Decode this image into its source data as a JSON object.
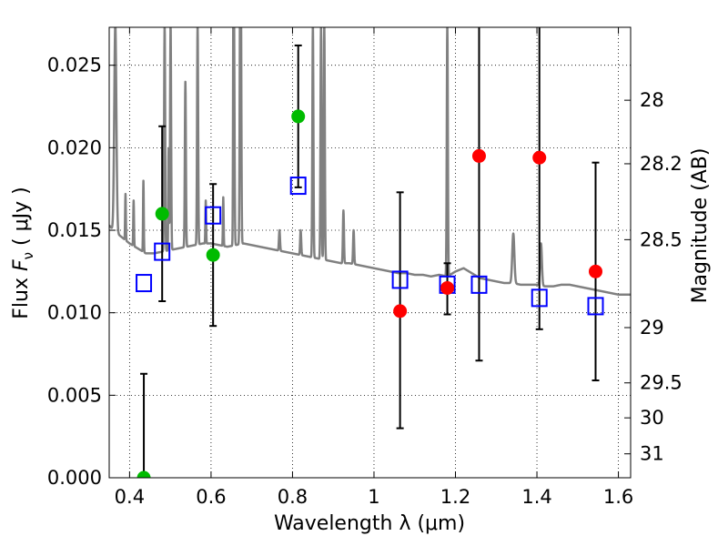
{
  "chart_data": {
    "type": "scatter",
    "title": "",
    "xlabel": "Wavelength  λ (μm)",
    "ylabel": "Flux  F_ν  ( μJy )",
    "ylabel_parts": {
      "flux": "Flux  ",
      "symbol": "F",
      "subscript": "ν",
      "unit": "  ( μJy )"
    },
    "ylabel_right": "Magnitude (AB)",
    "xlim": [
      0.35,
      1.63
    ],
    "ylim": [
      0.0,
      0.0273
    ],
    "grid": true,
    "x_ticks": [
      0.4,
      0.6,
      0.8,
      1.0,
      1.2,
      1.4,
      1.6
    ],
    "x_tick_labels": [
      "0.4",
      "0.6",
      "0.8",
      "1",
      "1.2",
      "1.4",
      "1.6"
    ],
    "y_ticks": [
      0.0,
      0.005,
      0.01,
      0.015,
      0.02,
      0.025
    ],
    "y_tick_labels": [
      "0.000",
      "0.005",
      "0.010",
      "0.015",
      "0.020",
      "0.025"
    ],
    "right_ticks": [
      {
        "label": "28",
        "flux": 0.02288
      },
      {
        "label": "28.2",
        "flux": 0.01903
      },
      {
        "label": "28.5",
        "flux": 0.01443
      },
      {
        "label": "29",
        "flux": 0.0091
      },
      {
        "label": "29.5",
        "flux": 0.00575
      },
      {
        "label": "30",
        "flux": 0.00363
      },
      {
        "label": "31",
        "flux": 0.00145
      }
    ],
    "series": [
      {
        "name": "observed_green",
        "marker": "circle",
        "color": "#00bb00",
        "points": [
          {
            "x": 0.435,
            "y": 0.0,
            "yerr_low": 0.0,
            "yerr_high": 0.0063
          },
          {
            "x": 0.48,
            "y": 0.016,
            "yerr_low": 0.0107,
            "yerr_high": 0.0213
          },
          {
            "x": 0.605,
            "y": 0.0135,
            "yerr_low": 0.0092,
            "yerr_high": 0.0178
          },
          {
            "x": 0.814,
            "y": 0.0219,
            "yerr_low": 0.0176,
            "yerr_high": 0.0262
          }
        ]
      },
      {
        "name": "observed_red",
        "marker": "circle",
        "color": "#ff0000",
        "points": [
          {
            "x": 1.064,
            "y": 0.0101,
            "yerr_low": 0.003,
            "yerr_high": 0.0173
          },
          {
            "x": 1.18,
            "y": 0.0115,
            "yerr_low": 0.0099,
            "yerr_high": 0.013
          },
          {
            "x": 1.258,
            "y": 0.0195,
            "yerr_low": 0.0071,
            "yerr_high": 0.028
          },
          {
            "x": 1.406,
            "y": 0.0194,
            "yerr_low": 0.009,
            "yerr_high": 0.028
          },
          {
            "x": 1.544,
            "y": 0.0125,
            "yerr_low": 0.0059,
            "yerr_high": 0.0191
          }
        ]
      },
      {
        "name": "model_photometry",
        "marker": "square",
        "color": "#0000ff",
        "points": [
          {
            "x": 0.435,
            "y": 0.0118
          },
          {
            "x": 0.48,
            "y": 0.0137
          },
          {
            "x": 0.605,
            "y": 0.0159
          },
          {
            "x": 0.814,
            "y": 0.0177
          },
          {
            "x": 1.064,
            "y": 0.012
          },
          {
            "x": 1.18,
            "y": 0.0117
          },
          {
            "x": 1.258,
            "y": 0.0117
          },
          {
            "x": 1.406,
            "y": 0.0109
          },
          {
            "x": 1.544,
            "y": 0.0104
          }
        ]
      }
    ],
    "model_spectrum": {
      "name": "SED model",
      "color": "#808080",
      "continuum": [
        [
          0.35,
          0.0153
        ],
        [
          0.36,
          0.015
        ],
        [
          0.37,
          0.0148
        ],
        [
          0.38,
          0.0146
        ],
        [
          0.39,
          0.0144
        ],
        [
          0.4,
          0.0142
        ],
        [
          0.42,
          0.0139
        ],
        [
          0.44,
          0.0136
        ],
        [
          0.46,
          0.0136
        ],
        [
          0.48,
          0.0137
        ],
        [
          0.5,
          0.0138
        ],
        [
          0.52,
          0.0139
        ],
        [
          0.54,
          0.014
        ],
        [
          0.56,
          0.0141
        ],
        [
          0.58,
          0.0142
        ],
        [
          0.6,
          0.0142
        ],
        [
          0.62,
          0.0141
        ],
        [
          0.64,
          0.014
        ],
        [
          0.66,
          0.0141
        ],
        [
          0.68,
          0.0142
        ],
        [
          0.7,
          0.0141
        ],
        [
          0.72,
          0.014
        ],
        [
          0.74,
          0.0139
        ],
        [
          0.76,
          0.0138
        ],
        [
          0.78,
          0.0137
        ],
        [
          0.8,
          0.0136
        ],
        [
          0.82,
          0.0135
        ],
        [
          0.84,
          0.0134
        ],
        [
          0.86,
          0.0133
        ],
        [
          0.88,
          0.0132
        ],
        [
          0.9,
          0.0131
        ],
        [
          0.92,
          0.013
        ],
        [
          0.94,
          0.013
        ],
        [
          0.96,
          0.0129
        ],
        [
          0.98,
          0.0128
        ],
        [
          1.0,
          0.0127
        ],
        [
          1.02,
          0.0126
        ],
        [
          1.04,
          0.0125
        ],
        [
          1.06,
          0.0124
        ],
        [
          1.08,
          0.0124
        ],
        [
          1.1,
          0.0123
        ],
        [
          1.12,
          0.0123
        ],
        [
          1.14,
          0.0122
        ],
        [
          1.16,
          0.0123
        ],
        [
          1.18,
          0.0122
        ],
        [
          1.2,
          0.0125
        ],
        [
          1.22,
          0.0127
        ],
        [
          1.24,
          0.0124
        ],
        [
          1.26,
          0.0121
        ],
        [
          1.28,
          0.012
        ],
        [
          1.3,
          0.0119
        ],
        [
          1.32,
          0.0118
        ],
        [
          1.34,
          0.0118
        ],
        [
          1.36,
          0.0117
        ],
        [
          1.38,
          0.0117
        ],
        [
          1.4,
          0.0117
        ],
        [
          1.42,
          0.0116
        ],
        [
          1.44,
          0.0116
        ],
        [
          1.46,
          0.0117
        ],
        [
          1.48,
          0.0117
        ],
        [
          1.5,
          0.0116
        ],
        [
          1.52,
          0.0115
        ],
        [
          1.54,
          0.0114
        ],
        [
          1.56,
          0.0113
        ],
        [
          1.58,
          0.0112
        ],
        [
          1.6,
          0.0111
        ],
        [
          1.63,
          0.0111
        ]
      ],
      "lines": [
        {
          "x": 0.365,
          "peak": 0.0275,
          "width": 0.006
        },
        {
          "x": 0.39,
          "peak": 0.0172,
          "width": 0.002
        },
        {
          "x": 0.41,
          "peak": 0.0168,
          "width": 0.002
        },
        {
          "x": 0.434,
          "peak": 0.018,
          "width": 0.002
        },
        {
          "x": 0.4861,
          "peak": 0.0275,
          "width": 0.003
        },
        {
          "x": 0.4959,
          "peak": 0.02,
          "width": 0.002
        },
        {
          "x": 0.5007,
          "peak": 0.0275,
          "width": 0.003
        },
        {
          "x": 0.537,
          "peak": 0.024,
          "width": 0.003
        },
        {
          "x": 0.567,
          "peak": 0.0275,
          "width": 0.003
        },
        {
          "x": 0.587,
          "peak": 0.0168,
          "width": 0.002
        },
        {
          "x": 0.63,
          "peak": 0.017,
          "width": 0.002
        },
        {
          "x": 0.6548,
          "peak": 0.024,
          "width": 0.002
        },
        {
          "x": 0.6563,
          "peak": 0.0275,
          "width": 0.003
        },
        {
          "x": 0.6716,
          "peak": 0.0275,
          "width": 0.003
        },
        {
          "x": 0.6731,
          "peak": 0.0275,
          "width": 0.003
        },
        {
          "x": 0.768,
          "peak": 0.015,
          "width": 0.003
        },
        {
          "x": 0.82,
          "peak": 0.015,
          "width": 0.003
        },
        {
          "x": 0.85,
          "peak": 0.0275,
          "width": 0.003
        },
        {
          "x": 0.87,
          "peak": 0.0275,
          "width": 0.003
        },
        {
          "x": 0.878,
          "peak": 0.0275,
          "width": 0.003
        },
        {
          "x": 0.925,
          "peak": 0.0162,
          "width": 0.003
        },
        {
          "x": 0.95,
          "peak": 0.015,
          "width": 0.003
        },
        {
          "x": 1.18,
          "peak": 0.0275,
          "width": 0.003
        },
        {
          "x": 1.342,
          "peak": 0.0148,
          "width": 0.006
        },
        {
          "x": 1.41,
          "peak": 0.0142,
          "width": 0.005
        }
      ]
    }
  }
}
